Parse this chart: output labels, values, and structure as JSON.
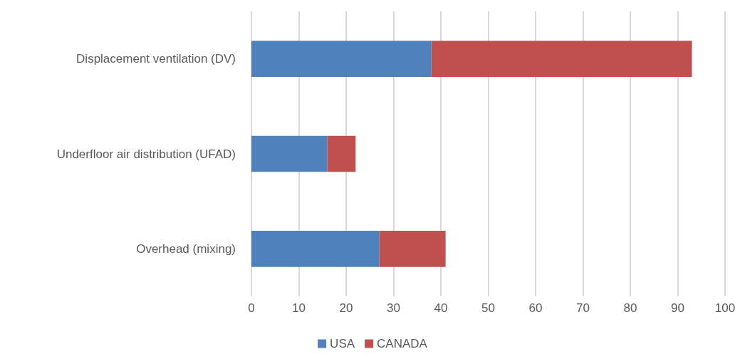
{
  "chart_data": {
    "type": "bar",
    "orientation": "horizontal",
    "stacked": true,
    "categories": [
      "Displacement ventilation (DV)",
      "Underfloor air distribution (UFAD)",
      "Overhead (mixing)"
    ],
    "series": [
      {
        "name": "USA",
        "color": "#4f81bd",
        "values": [
          38,
          16,
          27
        ]
      },
      {
        "name": "CANADA",
        "color": "#c0504d",
        "values": [
          55,
          6,
          14
        ]
      }
    ],
    "xlim": [
      0,
      100
    ],
    "xticks": [
      0,
      10,
      20,
      30,
      40,
      50,
      60,
      70,
      80,
      90,
      100
    ],
    "grid": "x",
    "legend": "bottom"
  }
}
